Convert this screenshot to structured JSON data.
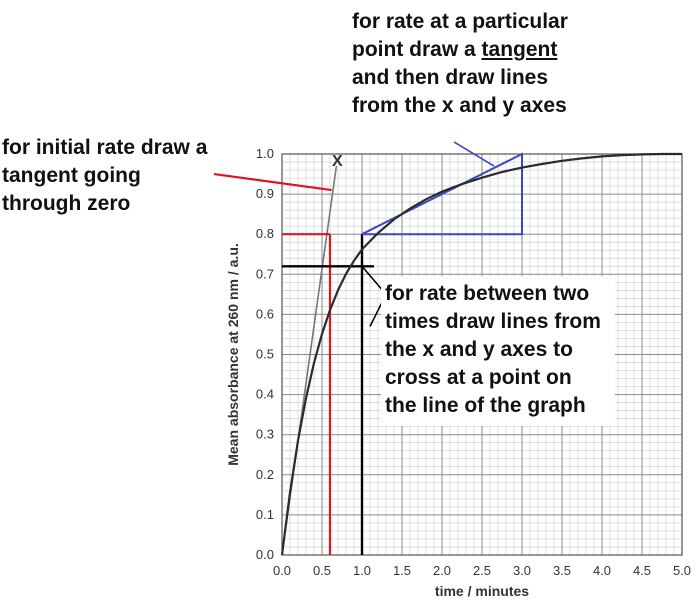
{
  "chart_data": {
    "type": "line",
    "xlabel": "time / minutes",
    "ylabel": "Mean absorbance at 260 nm / a.u.",
    "xlim": [
      0,
      5
    ],
    "ylim": [
      0,
      1
    ],
    "x_ticks": [
      "0.0",
      "0.5",
      "1.0",
      "1.5",
      "2.0",
      "2.5",
      "3.0",
      "3.5",
      "4.0",
      "4.5",
      "5.0"
    ],
    "y_ticks": [
      "0.0",
      "0.1",
      "0.2",
      "0.3",
      "0.4",
      "0.5",
      "0.6",
      "0.7",
      "0.8",
      "0.9",
      "1.0"
    ],
    "grid": true,
    "series": [
      {
        "x": [
          0,
          0.1,
          0.2,
          0.3,
          0.4,
          0.5,
          0.6,
          0.7,
          0.8,
          0.9,
          1.0,
          1.2,
          1.4,
          1.6,
          1.8,
          2.0,
          2.25,
          2.5,
          2.75,
          3.0,
          3.25,
          3.5,
          3.75,
          4.0,
          4.25,
          4.5,
          4.75,
          5.0
        ],
        "y": [
          0,
          0.156,
          0.285,
          0.391,
          0.479,
          0.551,
          0.611,
          0.66,
          0.701,
          0.734,
          0.762,
          0.803,
          0.837,
          0.864,
          0.887,
          0.906,
          0.925,
          0.941,
          0.955,
          0.966,
          0.975,
          0.983,
          0.989,
          0.994,
          0.997,
          0.999,
          1.0,
          1.0
        ],
        "color": "#2b2b2b"
      }
    ],
    "guides": {
      "initial_tangent": {
        "x": [
          0,
          0.68
        ],
        "y": [
          0,
          0.97
        ],
        "color": "#777777"
      },
      "x_marker": {
        "text": "X",
        "x": 0.7,
        "y": 0.96
      },
      "red_lines": {
        "x": 0.6,
        "y": 0.8,
        "color": "#e0141e"
      },
      "red_pointer": {
        "from": [
          -0.85,
          0.95
        ],
        "to": [
          0.62,
          0.91
        ]
      },
      "black_lines": {
        "x": 1.0,
        "y": 0.72,
        "color": "#000000"
      },
      "blue_triangle": {
        "points": [
          [
            1.0,
            0.8
          ],
          [
            3.0,
            1.0
          ],
          [
            3.0,
            0.8
          ]
        ],
        "color": "#3b46c6"
      },
      "blue_pointer": {
        "from": [
          2.15,
          1.03
        ],
        "to": [
          2.65,
          0.97
        ]
      },
      "black_pointers": [
        {
          "from": [
            1.3,
            0.65
          ],
          "to": [
            1.0,
            0.72
          ]
        },
        {
          "from": [
            1.3,
            0.65
          ],
          "to": [
            1.1,
            0.57
          ]
        }
      ]
    }
  },
  "notes": {
    "initial_rate": "for initial rate draw a\ntangent going\nthrough zero",
    "particular_before": "for rate at a particular\npoint draw a ",
    "particular_tangent": "tangent",
    "particular_after": "\nand then draw lines\nfrom the x and y axes",
    "between": "for rate between two\ntimes draw lines from\nthe x and y axes to\ncross at a point on\nthe line of the graph"
  }
}
